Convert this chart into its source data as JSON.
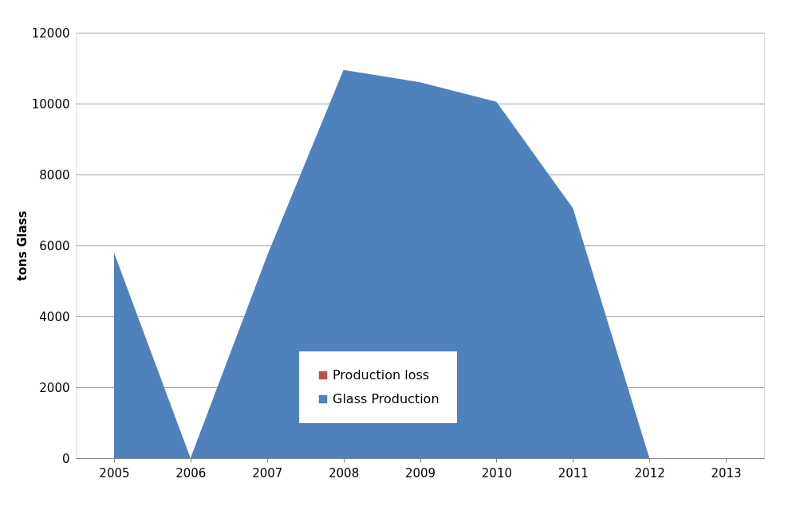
{
  "chart_data": {
    "type": "area",
    "ylabel": "tons Glass",
    "categories": [
      "2005",
      "2006",
      "2007",
      "2008",
      "2009",
      "2010",
      "2011",
      "2012",
      "2013"
    ],
    "series": [
      {
        "name": "Glass Production",
        "color": "#4f81bd",
        "values": [
          5800,
          0,
          5700,
          10950,
          10600,
          10050,
          7050,
          0,
          null
        ]
      },
      {
        "name": "Production loss",
        "color": "#c0504d",
        "values": [
          null,
          null,
          null,
          null,
          null,
          null,
          null,
          null,
          null
        ]
      }
    ],
    "ylim": [
      0,
      12000
    ],
    "yticks": [
      0,
      2000,
      4000,
      6000,
      8000,
      10000,
      12000
    ],
    "grid": "y",
    "legend": "bottom"
  }
}
